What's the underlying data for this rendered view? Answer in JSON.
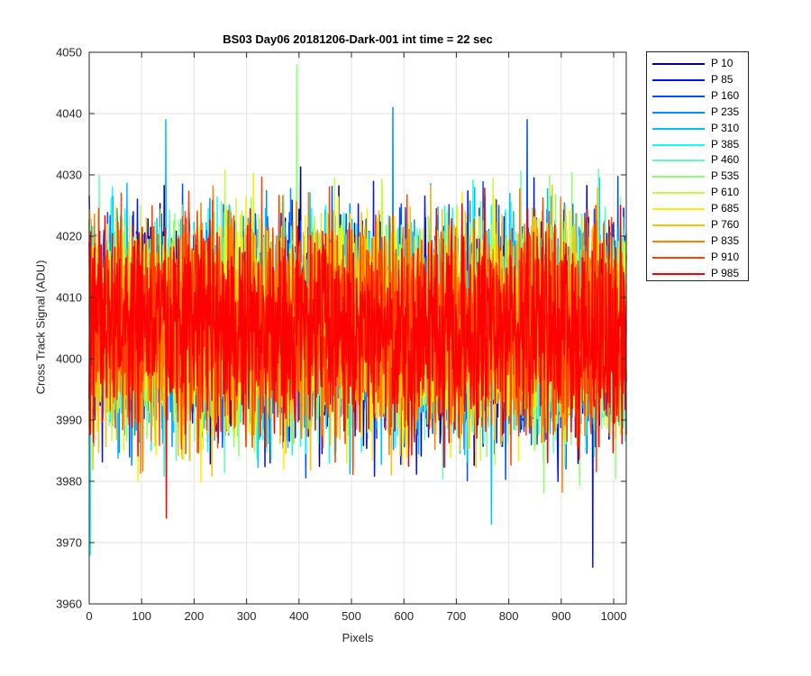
{
  "chart_data": {
    "type": "line",
    "title": "BS03 Day06 20181206-Dark-001 int time = 22 sec",
    "xlabel": "Pixels",
    "ylabel": "Cross Track Signal (ADU)",
    "xlim": [
      0,
      1024
    ],
    "ylim": [
      3960,
      4050
    ],
    "xticks": [
      0,
      100,
      200,
      300,
      400,
      500,
      600,
      700,
      800,
      900,
      1000
    ],
    "yticks": [
      3960,
      3970,
      3980,
      3990,
      4000,
      4010,
      4020,
      4030,
      4040,
      4050
    ],
    "grid": true,
    "legend_position": "outside-top-right",
    "approx_mean": 4005,
    "approx_noise_range": [
      3974,
      4041
    ],
    "series": [
      {
        "name": "P 10",
        "color": "#00008F"
      },
      {
        "name": "P 85",
        "color": "#0010FF"
      },
      {
        "name": "P 160",
        "color": "#0050FF"
      },
      {
        "name": "P 235",
        "color": "#0090FF"
      },
      {
        "name": "P 310",
        "color": "#00C0FF"
      },
      {
        "name": "P 385",
        "color": "#10FFEF"
      },
      {
        "name": "P 460",
        "color": "#60FFC0"
      },
      {
        "name": "P 535",
        "color": "#8FFF70"
      },
      {
        "name": "P 610",
        "color": "#C0FF40"
      },
      {
        "name": "P 685",
        "color": "#FFEF00"
      },
      {
        "name": "P 760",
        "color": "#FFC000"
      },
      {
        "name": "P 835",
        "color": "#FF8000"
      },
      {
        "name": "P 910",
        "color": "#FF4000"
      },
      {
        "name": "P 985",
        "color": "#FF0000"
      }
    ],
    "notable_points": [
      {
        "series": "P 535",
        "x": 396,
        "y": 4048
      },
      {
        "series": "P 235",
        "x": 579,
        "y": 4041
      },
      {
        "series": "P 160",
        "x": 835,
        "y": 4039
      },
      {
        "series": "P 310",
        "x": 146,
        "y": 4039
      },
      {
        "series": "P 85",
        "x": 960,
        "y": 3966
      },
      {
        "series": "P 385",
        "x": 2,
        "y": 3968
      },
      {
        "series": "P 985",
        "x": 147,
        "y": 3974
      },
      {
        "series": "P 310",
        "x": 767,
        "y": 3973
      }
    ]
  }
}
